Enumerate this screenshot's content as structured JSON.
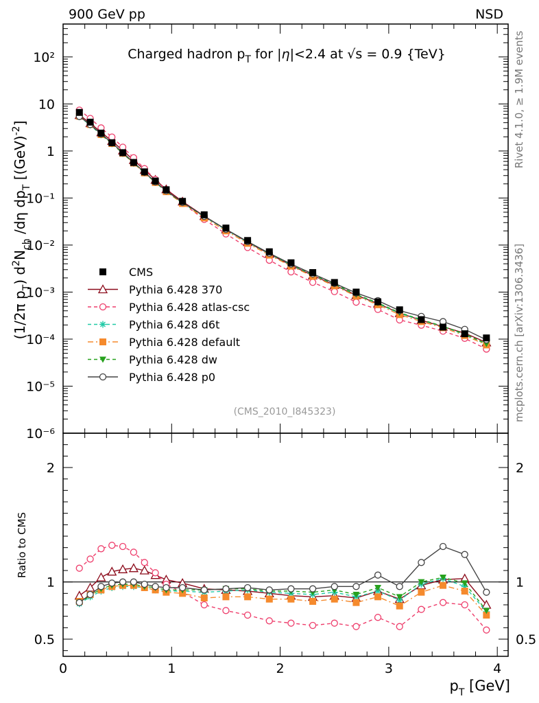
{
  "header": {
    "left": "900 GeV pp",
    "right": "NSD"
  },
  "side_labels": {
    "rivet": "Rivet 4.1.0, ≥ 1.9M events",
    "mcplots": "mcplots.cern.ch [arXiv:1306.3436]"
  },
  "credit": "(CMS_2010_I845323)",
  "chart_data": {
    "type": "scatter",
    "title": "Charged hadron p_T for |η|<2.4 at √s = 0.9 {TeV}",
    "xlabel": "p_T [GeV]",
    "ylabel": "(1/2π p_T) d²N_ch/dη dp_T [(GeV)⁻²]",
    "ratio_ylabel": "Ratio to CMS",
    "xlim": [
      0,
      4.1
    ],
    "ylim_log": [
      1e-06,
      500
    ],
    "ratio_ylim": [
      0.35,
      2.3
    ],
    "x_ticks": [
      "0",
      "1",
      "2",
      "3",
      "4"
    ],
    "y_ticks_main": [
      "10⁻⁶",
      "10⁻⁵",
      "10⁻⁴",
      "10⁻³",
      "10⁻²",
      "10⁻¹",
      "1",
      "10",
      "10²"
    ],
    "ratio_ticks": [
      "0.5",
      "1",
      "2"
    ],
    "x": [
      0.15,
      0.25,
      0.35,
      0.45,
      0.55,
      0.65,
      0.75,
      0.85,
      0.95,
      1.1,
      1.3,
      1.5,
      1.7,
      1.9,
      2.1,
      2.3,
      2.5,
      2.7,
      2.9,
      3.1,
      3.3,
      3.5,
      3.7,
      3.9
    ],
    "cms_values": [
      6.6,
      4.1,
      2.4,
      1.5,
      0.92,
      0.57,
      0.36,
      0.23,
      0.15,
      0.085,
      0.044,
      0.023,
      0.0125,
      0.0072,
      0.0042,
      0.0026,
      0.0016,
      0.001,
      0.00062,
      0.00042,
      0.00026,
      0.00018,
      0.00013,
      0.000106
    ],
    "legend": [
      {
        "name": "CMS",
        "color": "#000000",
        "marker": "square-filled",
        "line": "none"
      },
      {
        "name": "Pythia 6.428 370",
        "color": "#8b0a1a",
        "marker": "triangle-open",
        "line": "solid"
      },
      {
        "name": "Pythia 6.428 atlas-csc",
        "color": "#ee3d6b",
        "marker": "circle-open",
        "line": "dashed"
      },
      {
        "name": "Pythia 6.428 d6t",
        "color": "#20c9a6",
        "marker": "star",
        "line": "dashed"
      },
      {
        "name": "Pythia 6.428 default",
        "color": "#f58a2d",
        "marker": "square-filled",
        "line": "dashdot"
      },
      {
        "name": "Pythia 6.428 dw",
        "color": "#27a11d",
        "marker": "triangle-down-filled",
        "line": "dashed"
      },
      {
        "name": "Pythia 6.428 p0",
        "color": "#444444",
        "marker": "circle-open",
        "line": "solid"
      }
    ],
    "series": [
      {
        "name": "Pythia 6.428 370",
        "ratio": [
          0.88,
          0.95,
          1.04,
          1.09,
          1.11,
          1.12,
          1.1,
          1.06,
          1.02,
          0.99,
          0.94,
          0.93,
          0.92,
          0.9,
          0.88,
          0.87,
          0.88,
          0.86,
          0.92,
          0.85,
          0.97,
          1.02,
          1.03,
          0.8
        ]
      },
      {
        "name": "Pythia 6.428 atlas-csc",
        "ratio": [
          1.12,
          1.2,
          1.29,
          1.32,
          1.31,
          1.26,
          1.17,
          1.08,
          0.98,
          0.91,
          0.8,
          0.75,
          0.71,
          0.66,
          0.64,
          0.62,
          0.64,
          0.61,
          0.69,
          0.61,
          0.76,
          0.82,
          0.8,
          0.58
        ]
      },
      {
        "name": "Pythia 6.428 d6t",
        "ratio": [
          0.81,
          0.87,
          0.92,
          0.95,
          0.96,
          0.96,
          0.95,
          0.93,
          0.92,
          0.92,
          0.91,
          0.92,
          0.93,
          0.91,
          0.9,
          0.89,
          0.91,
          0.87,
          0.92,
          0.84,
          0.98,
          1.03,
          0.96,
          0.74
        ]
      },
      {
        "name": "Pythia 6.428 default",
        "ratio": [
          0.83,
          0.89,
          0.93,
          0.96,
          0.97,
          0.97,
          0.95,
          0.93,
          0.91,
          0.9,
          0.86,
          0.87,
          0.87,
          0.85,
          0.85,
          0.83,
          0.85,
          0.82,
          0.87,
          0.79,
          0.91,
          0.97,
          0.92,
          0.71
        ]
      },
      {
        "name": "Pythia 6.428 dw",
        "ratio": [
          0.82,
          0.88,
          0.94,
          0.97,
          0.98,
          0.98,
          0.96,
          0.95,
          0.93,
          0.93,
          0.93,
          0.94,
          0.94,
          0.92,
          0.92,
          0.91,
          0.93,
          0.89,
          0.95,
          0.87,
          1.0,
          1.04,
          0.99,
          0.75
        ]
      },
      {
        "name": "Pythia 6.428 p0",
        "ratio": [
          0.82,
          0.89,
          0.96,
          0.99,
          1.0,
          1.0,
          0.98,
          0.96,
          0.95,
          0.95,
          0.93,
          0.94,
          0.95,
          0.93,
          0.94,
          0.94,
          0.96,
          0.96,
          1.06,
          0.96,
          1.17,
          1.31,
          1.24,
          0.91
        ]
      }
    ]
  }
}
